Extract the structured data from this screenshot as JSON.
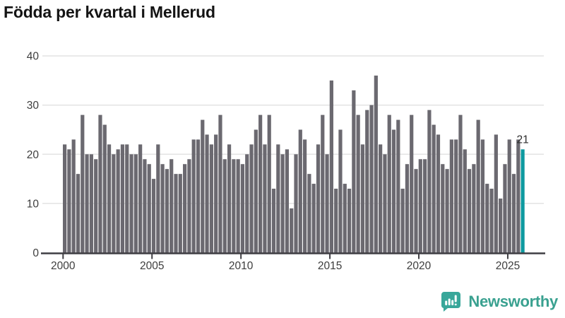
{
  "title": "Födda per kvartal i Mellerud",
  "annotation": {
    "last_value_label": "21"
  },
  "logo": {
    "text": "Newsworthy"
  },
  "colors": {
    "bar": "#6b6970",
    "highlight": "#0e9aa0",
    "grid": "#e3e3e3",
    "axis": "#3f3e43",
    "tick_label": "#3d3d3d",
    "value_label": "#2d2d2d",
    "title": "#141414",
    "logo": "#3aa190"
  },
  "chart_data": {
    "type": "bar",
    "title": "Födda per kvartal i Mellerud",
    "x_unit": "quarter",
    "start_period": "2000 Q1",
    "end_period": "2025 Q4",
    "values": [
      22,
      21,
      23,
      16,
      28,
      20,
      20,
      19,
      28,
      26,
      22,
      20,
      21,
      22,
      22,
      20,
      20,
      22,
      19,
      18,
      15,
      22,
      18,
      17,
      19,
      16,
      16,
      18,
      19,
      23,
      23,
      27,
      24,
      22,
      24,
      28,
      19,
      22,
      19,
      19,
      18,
      20,
      22,
      25,
      28,
      22,
      28,
      13,
      22,
      20,
      21,
      9,
      20,
      25,
      23,
      16,
      14,
      22,
      28,
      20,
      35,
      13,
      25,
      14,
      13,
      33,
      28,
      22,
      29,
      30,
      36,
      22,
      20,
      28,
      25,
      27,
      13,
      18,
      28,
      17,
      19,
      19,
      29,
      26,
      24,
      18,
      17,
      23,
      23,
      28,
      21,
      17,
      18,
      27,
      23,
      14,
      13,
      24,
      11,
      18,
      23,
      16,
      23,
      21
    ],
    "highlight_index": 103,
    "highlight_label": "21",
    "x_tick_labels": [
      "2000",
      "2005",
      "2010",
      "2015",
      "2020",
      "2025"
    ],
    "y_tick_labels": [
      "0",
      "10",
      "20",
      "30",
      "40"
    ],
    "ylim": [
      0,
      40
    ],
    "grid": true,
    "legend": false
  }
}
